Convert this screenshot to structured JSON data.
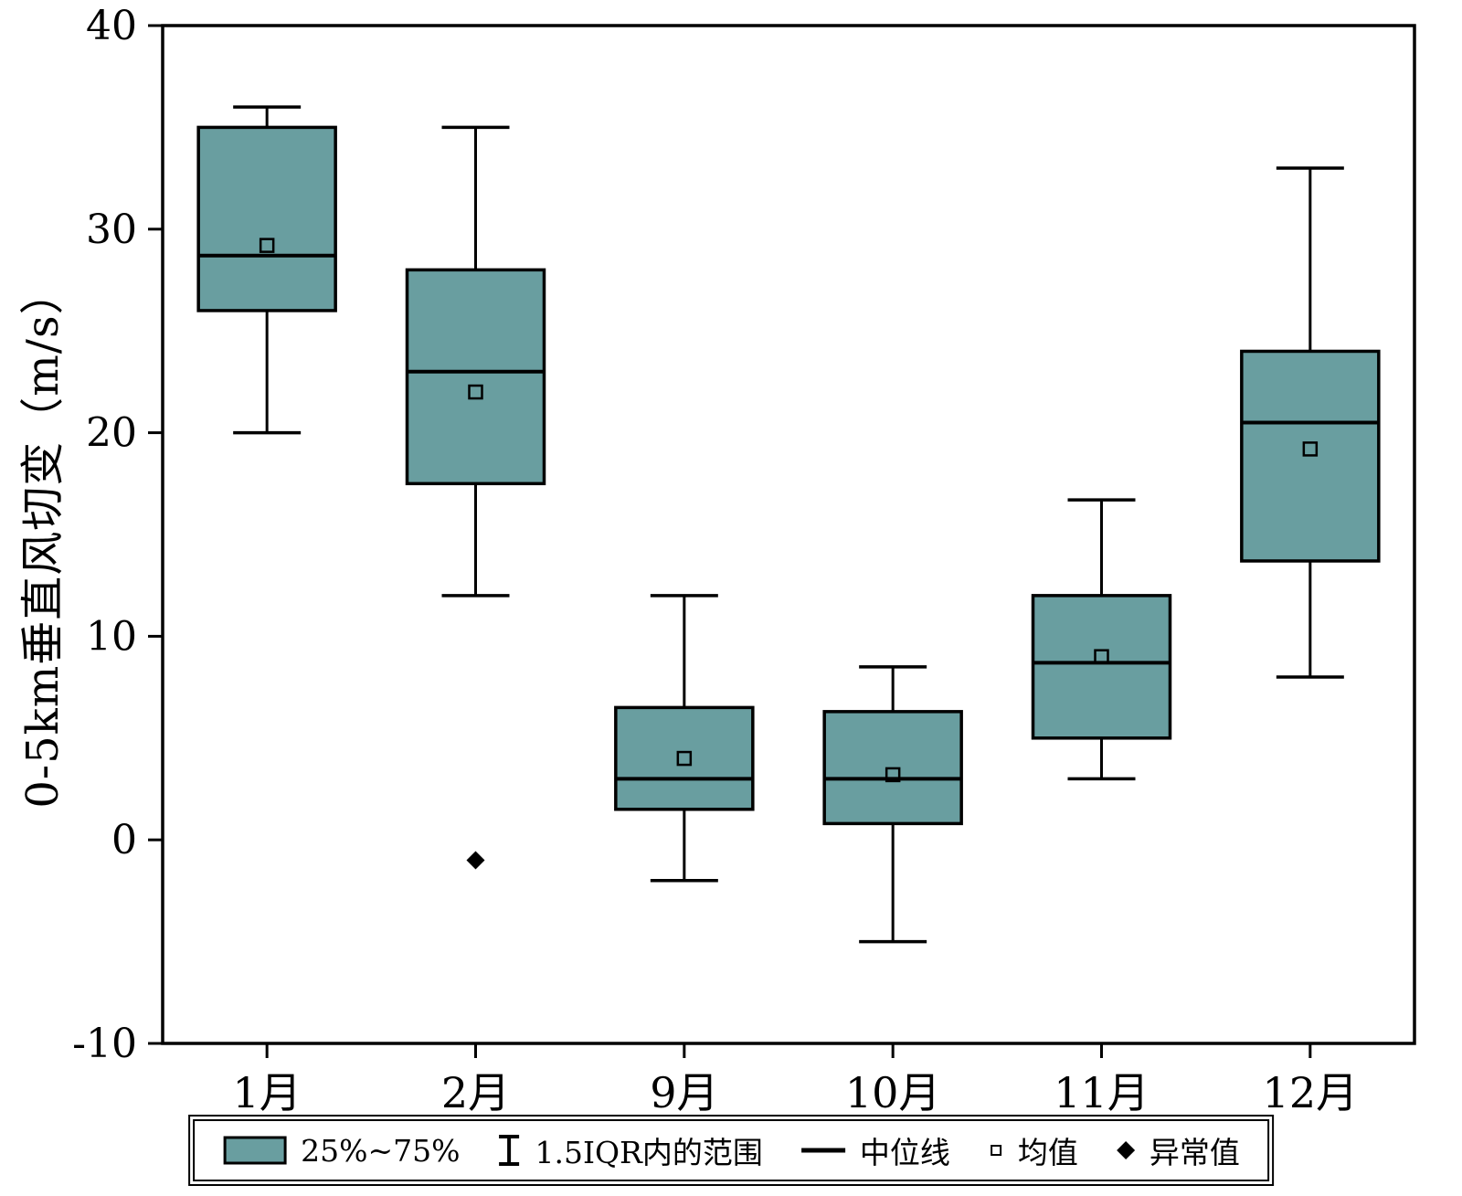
{
  "chart_data": {
    "type": "boxplot",
    "title": "",
    "xlabel": "",
    "ylabel": "0-5km垂直风切变（m/s）",
    "ylim": [
      -10,
      40
    ],
    "yticks": [
      -10,
      0,
      10,
      20,
      30,
      40
    ],
    "grid": false,
    "legend_position": "bottom",
    "box_color": "#699ea0",
    "stroke_color": "#000000",
    "categories": [
      "1月",
      "2月",
      "9月",
      "10月",
      "11月",
      "12月"
    ],
    "series": [
      {
        "category": "1月",
        "whisker_low": 20,
        "q1": 26,
        "median": 28.7,
        "q3": 35,
        "whisker_high": 36,
        "mean": 29.2,
        "outliers": []
      },
      {
        "category": "2月",
        "whisker_low": 12,
        "q1": 17.5,
        "median": 23,
        "q3": 28,
        "whisker_high": 35,
        "mean": 22,
        "outliers": [
          -1
        ]
      },
      {
        "category": "9月",
        "whisker_low": -2,
        "q1": 1.5,
        "median": 3,
        "q3": 6.5,
        "whisker_high": 12,
        "mean": 4,
        "outliers": []
      },
      {
        "category": "10月",
        "whisker_low": -5,
        "q1": 0.8,
        "median": 3,
        "q3": 6.3,
        "whisker_high": 8.5,
        "mean": 3.2,
        "outliers": []
      },
      {
        "category": "11月",
        "whisker_low": 3,
        "q1": 5,
        "median": 8.7,
        "q3": 12,
        "whisker_high": 16.7,
        "mean": 9,
        "outliers": []
      },
      {
        "category": "12月",
        "whisker_low": 8,
        "q1": 13.7,
        "median": 20.5,
        "q3": 24,
        "whisker_high": 33,
        "mean": 19.2,
        "outliers": []
      }
    ],
    "legend": [
      {
        "label": "25%~75%",
        "symbol": "box"
      },
      {
        "label": "1.5IQR内的范围",
        "symbol": "whisker"
      },
      {
        "label": "中位线",
        "symbol": "median-line"
      },
      {
        "label": "均值",
        "symbol": "mean-square"
      },
      {
        "label": "异常值",
        "symbol": "outlier-diamond"
      }
    ]
  }
}
